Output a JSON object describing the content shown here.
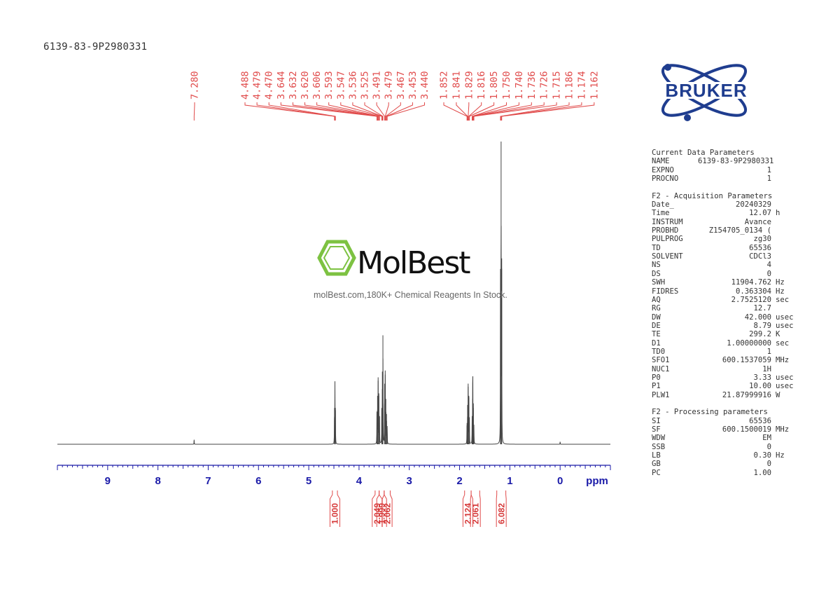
{
  "sample_name": "6139-83-9P2980331",
  "chart_data": {
    "type": "line",
    "title": "6139-83-9P2980331",
    "xlabel": "ppm",
    "x_range": [
      10.0,
      -1.0
    ],
    "x_reversed": true,
    "x_ticks": [
      "9",
      "8",
      "7",
      "6",
      "5",
      "4",
      "3",
      "2",
      "1",
      "0"
    ],
    "grid": false,
    "series": [
      {
        "peaks": [
          {
            "ppm": 7.28,
            "height": 0.015
          },
          {
            "ppm": 4.488,
            "height": 0.12
          },
          {
            "ppm": 4.479,
            "height": 0.2
          },
          {
            "ppm": 4.47,
            "height": 0.12
          },
          {
            "ppm": 3.644,
            "height": 0.1
          },
          {
            "ppm": 3.632,
            "height": 0.16
          },
          {
            "ppm": 3.62,
            "height": 0.21
          },
          {
            "ppm": 3.606,
            "height": 0.16
          },
          {
            "ppm": 3.593,
            "height": 0.09
          },
          {
            "ppm": 3.547,
            "height": 0.12
          },
          {
            "ppm": 3.536,
            "height": 0.24
          },
          {
            "ppm": 3.525,
            "height": 0.36
          },
          {
            "ppm": 3.491,
            "height": 0.2
          },
          {
            "ppm": 3.479,
            "height": 0.23
          },
          {
            "ppm": 3.467,
            "height": 0.15
          },
          {
            "ppm": 3.453,
            "height": 0.1
          },
          {
            "ppm": 3.44,
            "height": 0.06
          },
          {
            "ppm": 1.852,
            "height": 0.07
          },
          {
            "ppm": 1.841,
            "height": 0.13
          },
          {
            "ppm": 1.829,
            "height": 0.19
          },
          {
            "ppm": 1.816,
            "height": 0.16
          },
          {
            "ppm": 1.805,
            "height": 0.08
          },
          {
            "ppm": 1.75,
            "height": 0.08
          },
          {
            "ppm": 1.74,
            "height": 0.15
          },
          {
            "ppm": 1.736,
            "height": 0.18
          },
          {
            "ppm": 1.726,
            "height": 0.12
          },
          {
            "ppm": 1.715,
            "height": 0.06
          },
          {
            "ppm": 1.186,
            "height": 0.55
          },
          {
            "ppm": 1.174,
            "height": 1.0
          },
          {
            "ppm": 1.162,
            "height": 0.58
          },
          {
            "ppm": 0.0,
            "height": 0.008
          }
        ]
      }
    ],
    "peak_labels": [
      "7.280",
      "4.488",
      "4.479",
      "4.470",
      "3.644",
      "3.632",
      "3.620",
      "3.606",
      "3.593",
      "3.547",
      "3.536",
      "3.525",
      "3.491",
      "3.479",
      "3.467",
      "3.453",
      "3.440",
      "1.852",
      "1.841",
      "1.829",
      "1.816",
      "1.805",
      "1.750",
      "1.740",
      "1.736",
      "1.726",
      "1.715",
      "1.186",
      "1.174",
      "1.162"
    ],
    "integrals": [
      {
        "from": 4.53,
        "to": 4.43,
        "value": "1.000"
      },
      {
        "from": 3.68,
        "to": 3.6,
        "value": "2.049"
      },
      {
        "from": 3.6,
        "to": 3.5,
        "value": "1.999"
      },
      {
        "from": 3.5,
        "to": 3.38,
        "value": "2.062"
      },
      {
        "from": 1.9,
        "to": 1.77,
        "value": "2.124"
      },
      {
        "from": 1.77,
        "to": 1.6,
        "value": "2.061"
      },
      {
        "from": 1.26,
        "to": 1.08,
        "value": "6.082"
      }
    ]
  },
  "logo_text": "BRUKER",
  "params": {
    "sections": [
      {
        "title": "Current Data Parameters",
        "rows": [
          {
            "name": "NAME",
            "value": "6139-83-9P2980331",
            "unit": ""
          },
          {
            "name": "EXPNO",
            "value": "1",
            "unit": ""
          },
          {
            "name": "PROCNO",
            "value": "1",
            "unit": ""
          }
        ]
      },
      {
        "title": "F2 - Acquisition Parameters",
        "rows": [
          {
            "name": "Date_",
            "value": "20240329",
            "unit": ""
          },
          {
            "name": "Time",
            "value": "12.07",
            "unit": "h"
          },
          {
            "name": "INSTRUM",
            "value": "Avance",
            "unit": ""
          },
          {
            "name": "PROBHD",
            "value": "Z154705_0134 (",
            "unit": ""
          },
          {
            "name": "PULPROG",
            "value": "zg30",
            "unit": ""
          },
          {
            "name": "TD",
            "value": "65536",
            "unit": ""
          },
          {
            "name": "SOLVENT",
            "value": "CDCl3",
            "unit": ""
          },
          {
            "name": "NS",
            "value": "4",
            "unit": ""
          },
          {
            "name": "DS",
            "value": "0",
            "unit": ""
          },
          {
            "name": "SWH",
            "value": "11904.762",
            "unit": "Hz"
          },
          {
            "name": "FIDRES",
            "value": "0.363304",
            "unit": "Hz"
          },
          {
            "name": "AQ",
            "value": "2.7525120",
            "unit": "sec"
          },
          {
            "name": "RG",
            "value": "12.7",
            "unit": ""
          },
          {
            "name": "DW",
            "value": "42.000",
            "unit": "usec"
          },
          {
            "name": "DE",
            "value": "8.79",
            "unit": "usec"
          },
          {
            "name": "TE",
            "value": "299.2",
            "unit": "K"
          },
          {
            "name": "D1",
            "value": "1.00000000",
            "unit": "sec"
          },
          {
            "name": "TD0",
            "value": "1",
            "unit": ""
          },
          {
            "name": "SFO1",
            "value": "600.1537059",
            "unit": "MHz"
          },
          {
            "name": "NUC1",
            "value": "1H",
            "unit": ""
          },
          {
            "name": "P0",
            "value": "3.33",
            "unit": "usec"
          },
          {
            "name": "P1",
            "value": "10.00",
            "unit": "usec"
          },
          {
            "name": "PLW1",
            "value": "21.87999916",
            "unit": "W"
          }
        ]
      },
      {
        "title": "F2 - Processing parameters",
        "rows": [
          {
            "name": "SI",
            "value": "65536",
            "unit": ""
          },
          {
            "name": "SF",
            "value": "600.1500019",
            "unit": "MHz"
          },
          {
            "name": "WDW",
            "value": "EM",
            "unit": ""
          },
          {
            "name": "SSB",
            "value": "0",
            "unit": ""
          },
          {
            "name": "LB",
            "value": "0.30",
            "unit": "Hz"
          },
          {
            "name": "GB",
            "value": "0",
            "unit": ""
          },
          {
            "name": "PC",
            "value": "1.00",
            "unit": ""
          }
        ]
      }
    ]
  },
  "watermark": {
    "brand": "MolBest",
    "tagline": "molBest.com,180K+ Chemical Reagents In Stock."
  },
  "colors": {
    "peak_labels": "#e04a4a",
    "axis": "#1a1aa8",
    "spectrum": "#444444",
    "watermark_green": "#7dc242",
    "bruker_blue": "#1f3d8f"
  }
}
